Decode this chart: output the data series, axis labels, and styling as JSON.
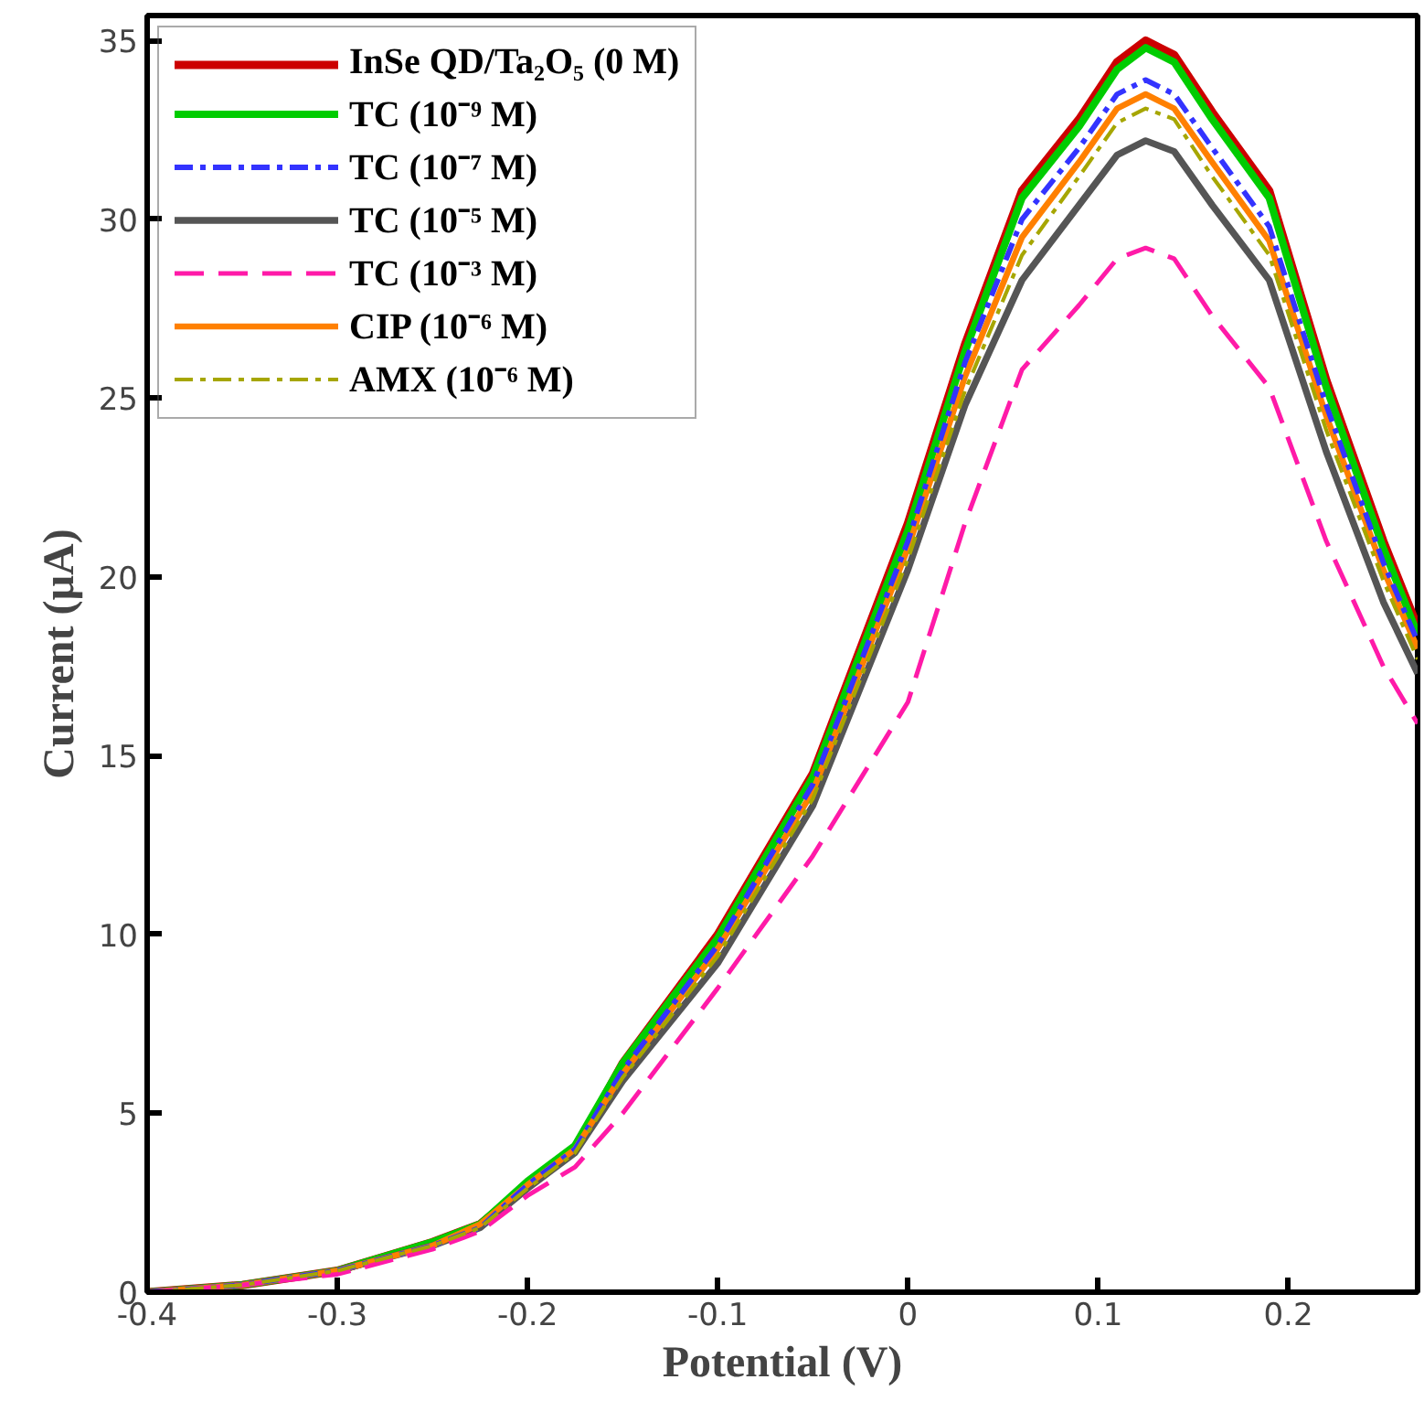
{
  "chart_data": {
    "type": "line",
    "xlabel": "Potential (V)",
    "ylabel": "Current (µA)",
    "xlim": [
      -0.4,
      0.268
    ],
    "ylim": [
      0,
      35.7
    ],
    "xticks": [
      -0.4,
      -0.3,
      -0.2,
      -0.1,
      0,
      0.1,
      0.2
    ],
    "yticks": [
      0,
      5,
      10,
      15,
      20,
      25,
      30,
      35
    ],
    "grid": false,
    "legend": "top left",
    "x": [
      -0.4,
      -0.35,
      -0.3,
      -0.25,
      -0.225,
      -0.2,
      -0.175,
      -0.15,
      -0.1,
      -0.05,
      0,
      0.03,
      0.06,
      0.09,
      0.11,
      0.125,
      0.14,
      0.16,
      0.19,
      0.22,
      0.25,
      0.268
    ],
    "series": [
      {
        "name": "InSe QD/Ta₂O₅ (0 M)",
        "color": "#cc0000",
        "line_style": "solid",
        "values": [
          0,
          0.2,
          0.6,
          1.4,
          1.9,
          3.0,
          4.0,
          6.4,
          10.0,
          14.5,
          21.5,
          26.5,
          30.8,
          32.8,
          34.4,
          35.0,
          34.6,
          33.0,
          30.8,
          25.5,
          21.0,
          18.6
        ]
      },
      {
        "name": "TC (10⁻⁹ M)",
        "color": "#00cc00",
        "line_style": "solid",
        "values": [
          0,
          0.2,
          0.6,
          1.4,
          1.9,
          3.1,
          4.1,
          6.4,
          9.9,
          14.4,
          21.3,
          26.3,
          30.6,
          32.6,
          34.2,
          34.8,
          34.4,
          32.8,
          30.6,
          25.3,
          20.8,
          18.4
        ]
      },
      {
        "name": "TC (10⁻⁷ M)",
        "color": "#3333ff",
        "line_style": "dashdot",
        "values": [
          0,
          0.2,
          0.6,
          1.3,
          1.8,
          3.0,
          4.0,
          6.2,
          9.7,
          14.2,
          21.0,
          26.0,
          30.0,
          32.0,
          33.5,
          33.9,
          33.5,
          32.0,
          29.8,
          24.8,
          20.4,
          18.2
        ]
      },
      {
        "name": "TC (10⁻⁵ M)",
        "color": "#555555",
        "line_style": "solid",
        "values": [
          0,
          0.2,
          0.6,
          1.3,
          1.8,
          2.9,
          3.9,
          5.9,
          9.2,
          13.6,
          20.2,
          24.8,
          28.3,
          30.4,
          31.8,
          32.2,
          31.9,
          30.4,
          28.3,
          23.5,
          19.3,
          17.3
        ]
      },
      {
        "name": "TC (10⁻³ M)",
        "color": "#ff1aa8",
        "line_style": "dashed",
        "values": [
          0,
          0.2,
          0.5,
          1.2,
          1.7,
          2.7,
          3.5,
          5.0,
          8.5,
          12.2,
          16.5,
          21.5,
          25.8,
          27.6,
          28.9,
          29.2,
          28.9,
          27.3,
          25.3,
          21.0,
          17.5,
          15.9
        ]
      },
      {
        "name": "CIP (10⁻⁶ M)",
        "color": "#ff8000",
        "line_style": "solid",
        "values": [
          0,
          0.2,
          0.6,
          1.3,
          1.9,
          3.0,
          4.0,
          6.1,
          9.6,
          14.0,
          20.8,
          25.6,
          29.5,
          31.6,
          33.1,
          33.5,
          33.1,
          31.6,
          29.4,
          24.5,
          20.2,
          18.0
        ]
      },
      {
        "name": "AMX (10⁻⁶ M)",
        "color": "#a6a600",
        "line_style": "dashdot",
        "values": [
          0,
          0.2,
          0.6,
          1.3,
          1.8,
          2.9,
          3.9,
          6.0,
          9.4,
          13.8,
          20.5,
          25.2,
          29.0,
          31.2,
          32.7,
          33.1,
          32.8,
          31.2,
          29.0,
          24.1,
          19.9,
          17.7
        ]
      }
    ]
  }
}
